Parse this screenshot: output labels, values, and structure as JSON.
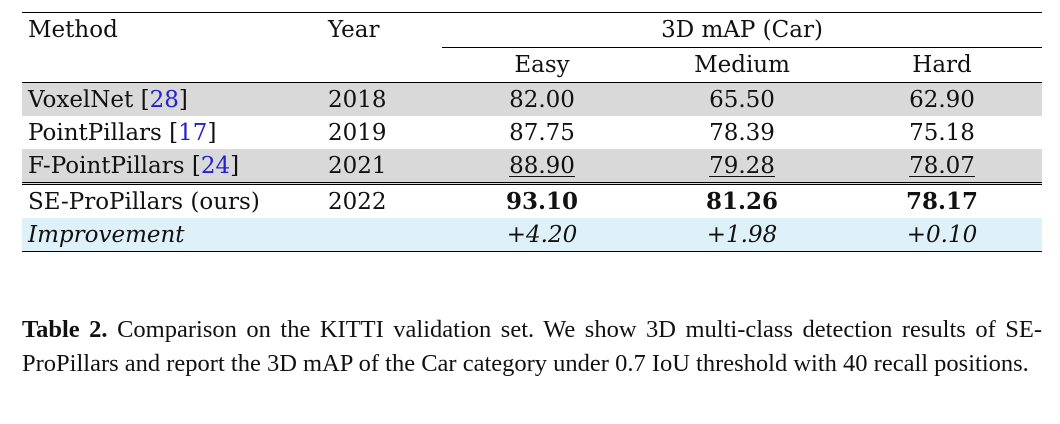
{
  "table": {
    "header": {
      "method": "Method",
      "year": "Year",
      "group": "3D mAP (Car)",
      "easy": "Easy",
      "medium": "Medium",
      "hard": "Hard"
    },
    "rows": [
      {
        "method": "VoxelNet",
        "cite": "28",
        "year": "2018",
        "easy": "82.00",
        "medium": "65.50",
        "hard": "62.90"
      },
      {
        "method": "PointPillars",
        "cite": "17",
        "year": "2019",
        "easy": "87.75",
        "medium": "78.39",
        "hard": "75.18"
      },
      {
        "method": "F-PointPillars",
        "cite": "24",
        "year": "2021",
        "easy": "88.90",
        "medium": "79.28",
        "hard": "78.07"
      },
      {
        "method": "SE-ProPillars (ours)",
        "year": "2022",
        "easy": "93.10",
        "medium": "81.26",
        "hard": "78.17"
      }
    ],
    "improvement": {
      "label": "Improvement",
      "easy": "+4.20",
      "medium": "+1.98",
      "hard": "+0.10"
    }
  },
  "caption": {
    "label": "Table 2.",
    "text": "Comparison on the KITTI validation set. We show 3D multi-class detection results of SE-ProPillars and report the 3D mAP of the Car category under 0.7 IoU threshold with 40 recall positions."
  }
}
